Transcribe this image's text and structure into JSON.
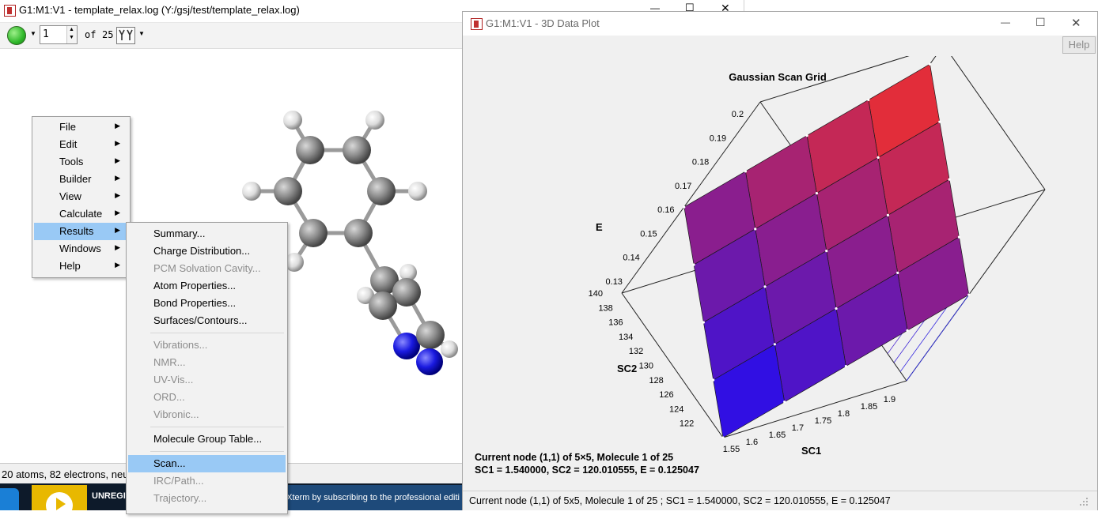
{
  "main_window": {
    "title": "G1:M1:V1 - template_relax.log (Y:/gsj/test/template_relax.log)",
    "controls": {
      "minimize": "—",
      "maximize": "☐",
      "close": "✕"
    }
  },
  "toolbar": {
    "molecule_value": "1",
    "of_label": "of",
    "total": "25"
  },
  "status": {
    "text": "20 atoms, 82 electrons, neu"
  },
  "taskbar": {
    "app_label": "UNREGI",
    "ad_text": "aXterm by subscribing to the professional editi"
  },
  "context_menu": {
    "items": [
      {
        "label": "File"
      },
      {
        "label": "Edit"
      },
      {
        "label": "Tools"
      },
      {
        "label": "Builder"
      },
      {
        "label": "View"
      },
      {
        "label": "Calculate"
      },
      {
        "label": "Results"
      },
      {
        "label": "Windows"
      },
      {
        "label": "Help"
      }
    ],
    "submenu_arrow": "▶"
  },
  "results_submenu": {
    "items": [
      {
        "label": "Summary..."
      },
      {
        "label": "Charge Distribution..."
      },
      {
        "label": "PCM Solvation Cavity..."
      },
      {
        "label": "Atom Properties..."
      },
      {
        "label": "Bond Properties..."
      },
      {
        "label": "Surfaces/Contours..."
      },
      {
        "label": "Vibrations..."
      },
      {
        "label": "NMR..."
      },
      {
        "label": "UV-Vis..."
      },
      {
        "label": "ORD..."
      },
      {
        "label": "Vibronic..."
      },
      {
        "label": "Molecule Group Table..."
      },
      {
        "label": "Scan..."
      },
      {
        "label": "IRC/Path..."
      },
      {
        "label": "Trajectory..."
      }
    ]
  },
  "plot_window": {
    "title": "G1:M1:V1 - 3D Data Plot",
    "help_button": "Help",
    "controls": {
      "minimize": "—",
      "maximize": "☐",
      "close": "✕"
    },
    "status_text": "Current node (1,1) of 5x5, Molecule 1 of 25 ; SC1 = 1.540000, SC2 = 120.010555, E = 0.125047"
  },
  "chart_data": {
    "type": "surface",
    "title": "Gaussian Scan Grid",
    "xlabel": "SC1",
    "ylabel": "SC2",
    "zlabel": "E",
    "x_ticks": [
      "1.55",
      "1.6",
      "1.65",
      "1.7",
      "1.75",
      "1.8",
      "1.85",
      "1.9"
    ],
    "y_ticks": [
      "122",
      "124",
      "126",
      "128",
      "130",
      "132",
      "134",
      "136",
      "138",
      "140"
    ],
    "z_ticks": [
      "0.13",
      "0.14",
      "0.15",
      "0.16",
      "0.17",
      "0.18",
      "0.19",
      "0.2"
    ],
    "xlim": [
      1.54,
      1.94
    ],
    "ylim": [
      120.0,
      140.0
    ],
    "zlim": [
      0.125,
      0.205
    ],
    "grid": "5x5",
    "x_nodes": [
      1.54,
      1.64,
      1.74,
      1.84,
      1.94
    ],
    "y_nodes": [
      120.0,
      125.0,
      130.0,
      135.0,
      140.0
    ],
    "colors": {
      "low": "#0000ff",
      "high": "#ff3300"
    },
    "annotation_line1": "Current node (1,1) of 5×5, Molecule 1 of 25",
    "annotation_line2": "SC1 = 1.540000, SC2 = 120.010555, E = 0.125047"
  }
}
